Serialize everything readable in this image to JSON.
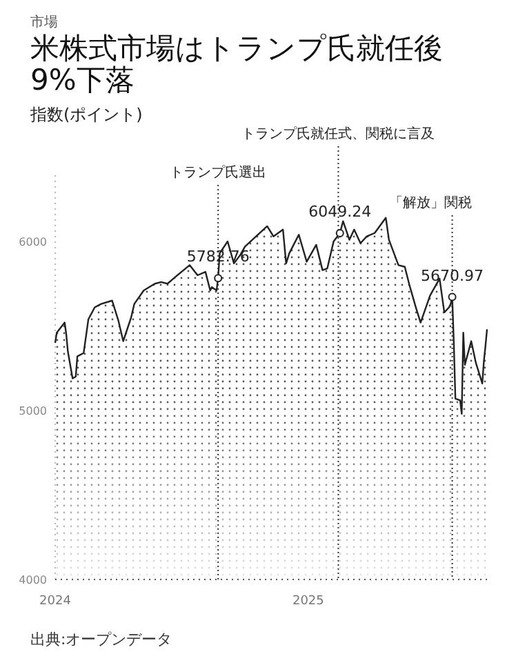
{
  "chart_data": {
    "type": "area",
    "title": "米株式市場はトランプ氏就任後9%下落",
    "subtitle": "指数(ポイント)",
    "annotations": [
      "市場",
      "出典:オープンデータ",
      {
        "text": "5782.76",
        "x": "2024-11-05",
        "y": 5782.76
      },
      {
        "text": "6049.24",
        "x": "2025-01-21",
        "y": 6049.24
      },
      {
        "text": "5670.97",
        "x": "2025-04-02",
        "y": 5670.97
      }
    ],
    "x": [
      "2024-07-25",
      "2024-07-26",
      "2024-07-31",
      "2024-08-01",
      "2024-08-02",
      "2024-08-05",
      "2024-08-07",
      "2024-08-08",
      "2024-08-12",
      "2024-08-15",
      "2024-08-19",
      "2024-08-23",
      "2024-08-30",
      "2024-09-03",
      "2024-09-06",
      "2024-09-11",
      "2024-09-13",
      "2024-09-19",
      "2024-09-26",
      "2024-09-30",
      "2024-10-04",
      "2024-10-09",
      "2024-10-18",
      "2024-10-23",
      "2024-10-28",
      "2024-10-31",
      "2024-11-01",
      "2024-11-04",
      "2024-11-05",
      "2024-11-06",
      "2024-11-11",
      "2024-11-15",
      "2024-11-19",
      "2024-11-22",
      "2024-11-29",
      "2024-12-06",
      "2024-12-10",
      "2024-12-16",
      "2024-12-18",
      "2024-12-20",
      "2024-12-26",
      "2024-12-31",
      "2025-01-06",
      "2025-01-10",
      "2025-01-13",
      "2025-01-17",
      "2025-01-21",
      "2025-01-23",
      "2025-01-27",
      "2025-01-30",
      "2025-02-03",
      "2025-02-07",
      "2025-02-12",
      "2025-02-19",
      "2025-02-21",
      "2025-02-27",
      "2025-03-03",
      "2025-03-06",
      "2025-03-10",
      "2025-03-13",
      "2025-03-19",
      "2025-03-25",
      "2025-03-28",
      "2025-03-31",
      "2025-04-01",
      "2025-04-02",
      "2025-04-03",
      "2025-04-04",
      "2025-04-07",
      "2025-04-08",
      "2025-04-09",
      "2025-04-10",
      "2025-04-14",
      "2025-04-17",
      "2025-04-21",
      "2025-04-22",
      "2025-04-23",
      "2025-04-24"
    ],
    "series": [
      {
        "color": "#222222",
        "values": [
          5400,
          5460,
          5520,
          5450,
          5350,
          5190,
          5200,
          5320,
          5340,
          5540,
          5610,
          5630,
          5650,
          5530,
          5410,
          5550,
          5630,
          5710,
          5750,
          5760,
          5750,
          5790,
          5860,
          5800,
          5820,
          5710,
          5730,
          5710,
          5782.76,
          5930,
          6000,
          5870,
          5920,
          5970,
          6030,
          6090,
          6030,
          6070,
          5870,
          5930,
          6040,
          5880,
          5980,
          5830,
          5840,
          6000,
          6049.24,
          6120,
          6010,
          6070,
          5990,
          6030,
          6050,
          6140,
          6010,
          5860,
          5850,
          5740,
          5610,
          5520,
          5680,
          5780,
          5580,
          5610,
          5630,
          5670.97,
          5400,
          5070,
          5060,
          4980,
          5460,
          5270,
          5410,
          5280,
          5160,
          5290,
          5380,
          5480
        ]
      }
    ],
    "xlim": [
      "2024-07-25",
      "2025-04-24"
    ],
    "xticks": [
      {
        "value": "2024-07-25",
        "label": "2024"
      },
      {
        "value": "2025-01-01",
        "label": "2025"
      }
    ],
    "ylim": [
      4000,
      6400
    ],
    "yticks": [
      4000,
      5000,
      6000
    ],
    "ref_lines": [
      {
        "axis": "x",
        "value": "2024-11-05",
        "label": "トランプ氏選出",
        "line_style": "dotted"
      },
      {
        "axis": "x",
        "value": "2025-01-20",
        "label": "トランプ氏就任式、関税に言及",
        "line_style": "dotted"
      },
      {
        "axis": "x",
        "value": "2025-04-02",
        "label": "「解放」関税",
        "line_style": "dotted"
      }
    ]
  }
}
